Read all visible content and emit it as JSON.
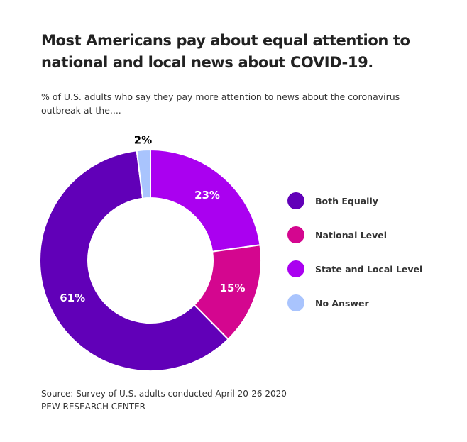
{
  "chart_data": {
    "type": "pie",
    "title_lines": [
      "Most Americans pay about equal attention to",
      "national and local news about COVID-19."
    ],
    "subtitle_lines": [
      "% of U.S. adults who say they pay more attention to news about the coronavirus",
      "outbreak at the...."
    ],
    "slices": [
      {
        "name": "State and Local Level",
        "value": 23,
        "label": "23%",
        "color": "#aa00f0",
        "label_color": "#ffffff"
      },
      {
        "name": "National Level",
        "value": 15,
        "label": "15%",
        "color": "#d4068f",
        "label_color": "#ffffff"
      },
      {
        "name": "Both Equally",
        "value": 61,
        "label": "61%",
        "color": "#6100b8",
        "label_color": "#ffffff"
      },
      {
        "name": "No Answer",
        "value": 2,
        "label": "2%",
        "color": "#a9c4fd",
        "label_color": "#000000"
      }
    ],
    "legend": [
      {
        "label": "Both Equally",
        "color": "#6100b8"
      },
      {
        "label": "National Level",
        "color": "#d4068f"
      },
      {
        "label": "State and Local Level",
        "color": "#aa00f0"
      },
      {
        "label": "No Answer",
        "color": "#a9c4fd"
      }
    ],
    "legend_position": "right",
    "source_lines": [
      "Source: Survey of U.S. adults conducted April 20-26 2020",
      "PEW RESEARCH CENTER"
    ]
  }
}
